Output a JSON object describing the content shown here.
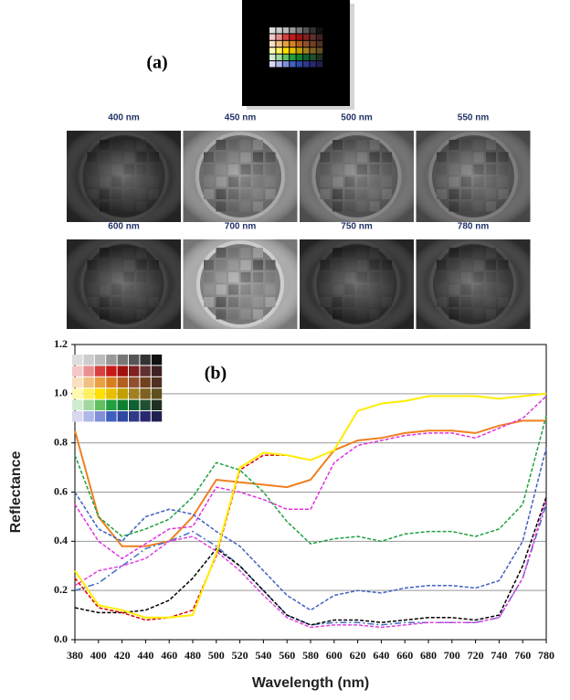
{
  "panel_a": {
    "label": "(a)",
    "images": [
      "400 nm",
      "450 nm",
      "500 nm",
      "550 nm",
      "600 nm",
      "700 nm",
      "750 nm",
      "780 nm"
    ]
  },
  "chart_data": {
    "type": "line",
    "panel_label": "(b)",
    "x_label": "Wavelength (nm)",
    "y_label": "Reflectance",
    "x": [
      380,
      400,
      420,
      440,
      460,
      480,
      500,
      520,
      540,
      560,
      580,
      600,
      620,
      640,
      660,
      680,
      700,
      720,
      740,
      760,
      780
    ],
    "xlim": [
      380,
      780
    ],
    "xticks": [
      380,
      400,
      420,
      440,
      460,
      480,
      500,
      520,
      540,
      560,
      580,
      600,
      620,
      640,
      660,
      680,
      700,
      720,
      740,
      760,
      780
    ],
    "ylim": [
      0,
      1.2
    ],
    "yticks": [
      {
        "value": 0,
        "label": "0.0"
      },
      0.2,
      0.4,
      0.6,
      0.8,
      {
        "value": 1,
        "label": "1.0"
      },
      1.2
    ],
    "grid": true,
    "series": [
      {
        "color": "#f08020",
        "dash": "solid",
        "values": [
          0.85,
          0.5,
          0.38,
          0.38,
          0.4,
          0.5,
          0.65,
          0.64,
          0.63,
          0.62,
          0.65,
          0.77,
          0.81,
          0.82,
          0.84,
          0.85,
          0.85,
          0.84,
          0.87,
          0.89,
          0.89
        ]
      },
      {
        "color": "#e030e0",
        "dash": "dashed",
        "values": [
          0.55,
          0.4,
          0.33,
          0.39,
          0.45,
          0.46,
          0.62,
          0.6,
          0.57,
          0.53,
          0.53,
          0.72,
          0.79,
          0.81,
          0.83,
          0.84,
          0.84,
          0.82,
          0.86,
          0.9,
          0.99
        ]
      },
      {
        "color": "#20a040",
        "dash": "dashed",
        "values": [
          0.75,
          0.5,
          0.42,
          0.45,
          0.49,
          0.58,
          0.72,
          0.69,
          0.6,
          0.48,
          0.39,
          0.41,
          0.42,
          0.4,
          0.43,
          0.44,
          0.44,
          0.42,
          0.45,
          0.55,
          0.91
        ]
      },
      {
        "color": "#4060c0",
        "dash": "dashed",
        "values": [
          0.6,
          0.45,
          0.4,
          0.5,
          0.53,
          0.51,
          0.44,
          0.38,
          0.28,
          0.18,
          0.12,
          0.18,
          0.2,
          0.19,
          0.21,
          0.22,
          0.22,
          0.21,
          0.24,
          0.4,
          0.78
        ]
      },
      {
        "color": "#4070c0",
        "dash": "dashdot",
        "values": [
          0.2,
          0.23,
          0.3,
          0.37,
          0.4,
          0.44,
          0.38,
          0.3,
          0.2,
          0.1,
          0.06,
          0.07,
          0.07,
          0.06,
          0.07,
          0.07,
          0.07,
          0.07,
          0.09,
          0.25,
          0.55
        ]
      },
      {
        "color": "#000000",
        "dash": "dashed",
        "values": [
          0.13,
          0.11,
          0.11,
          0.12,
          0.16,
          0.25,
          0.37,
          0.3,
          0.2,
          0.1,
          0.06,
          0.08,
          0.08,
          0.07,
          0.08,
          0.09,
          0.09,
          0.08,
          0.1,
          0.3,
          0.58
        ]
      },
      {
        "color": "#e040e0",
        "dash": "dashed",
        "values": [
          0.22,
          0.28,
          0.3,
          0.33,
          0.4,
          0.42,
          0.36,
          0.28,
          0.18,
          0.09,
          0.05,
          0.06,
          0.06,
          0.05,
          0.06,
          0.07,
          0.07,
          0.07,
          0.09,
          0.25,
          0.57
        ]
      },
      {
        "color": "#e00000",
        "dash": "dashed",
        "values": [
          0.25,
          0.13,
          0.11,
          0.08,
          0.09,
          0.12,
          0.34,
          0.69,
          0.75,
          0.75,
          0.73,
          0.77,
          0.93,
          0.96,
          0.97,
          0.99,
          0.99,
          0.99,
          0.98,
          0.99,
          1.0
        ]
      },
      {
        "color": "#ffee00",
        "dash": "solid",
        "values": [
          0.28,
          0.14,
          0.12,
          0.09,
          0.09,
          0.1,
          0.35,
          0.7,
          0.76,
          0.75,
          0.73,
          0.77,
          0.93,
          0.96,
          0.97,
          0.99,
          0.99,
          0.99,
          0.98,
          0.99,
          1.0
        ]
      }
    ]
  }
}
